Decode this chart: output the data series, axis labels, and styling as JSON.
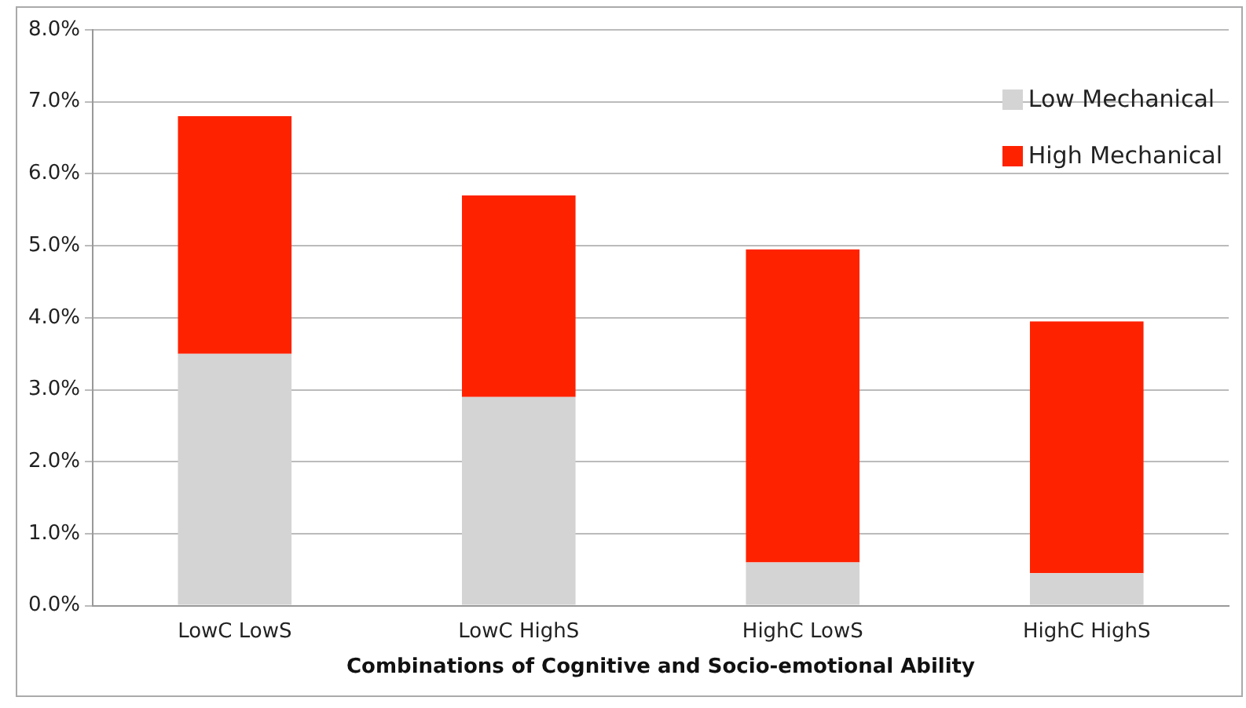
{
  "chart_data": {
    "type": "bar",
    "stacked": true,
    "xlabel": "Combinations of Cognitive and Socio-emotional Ability",
    "categories": [
      "LowC LowS",
      "LowC HighS",
      "HighC LowS",
      "HighC HighS"
    ],
    "series": [
      {
        "name": "Low Mechanical",
        "color": "#d4d4d4",
        "values": [
          3.5,
          2.9,
          0.6,
          0.45
        ]
      },
      {
        "name": "High Mechanical",
        "color": "#ff2200",
        "values": [
          3.3,
          2.8,
          4.35,
          3.5
        ]
      }
    ],
    "ylim": [
      0,
      8
    ],
    "yticks": [
      {
        "value": 0,
        "label": "0.0%"
      },
      {
        "value": 1,
        "label": "1.0%"
      },
      {
        "value": 2,
        "label": "2.0%"
      },
      {
        "value": 3,
        "label": "3.0%"
      },
      {
        "value": 4,
        "label": "4.0%"
      },
      {
        "value": 5,
        "label": "5.0%"
      },
      {
        "value": 6,
        "label": "6.0%"
      },
      {
        "value": 7,
        "label": "7.0%"
      },
      {
        "value": 8,
        "label": "8.0%"
      }
    ],
    "grid": "y",
    "legend": "top right"
  }
}
